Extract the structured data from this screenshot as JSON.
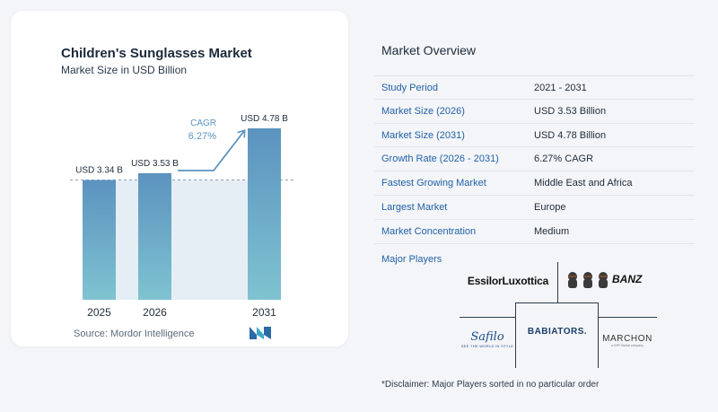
{
  "chart_card": {
    "title": "Children's Sunglasses Market",
    "subtitle": "Market Size in USD Billion",
    "source": "Source:  Mordor Intelligence"
  },
  "chart_data": {
    "type": "bar",
    "title": "Children's Sunglasses Market",
    "subtitle": "Market Size in USD Billion",
    "categories": [
      "2025",
      "2026",
      "2031"
    ],
    "values": [
      3.34,
      3.53,
      4.78
    ],
    "data_labels": [
      "USD 3.34 B",
      "USD 3.53 B",
      "USD 4.78 B"
    ],
    "annotation": {
      "label": "CAGR",
      "value": "6.27%"
    },
    "baseline_reference": 3.34,
    "ylim": [
      0,
      4.78
    ],
    "grid": false,
    "bar_color_top": "#5b93bf",
    "bar_color_bottom": "#7fc3d1",
    "shade_color": "#e6eef5",
    "arrow_color": "#5b93bf"
  },
  "overview": {
    "title": "Market Overview",
    "rows": [
      {
        "label": "Study Period",
        "value": "2021 - 2031"
      },
      {
        "label": "Market Size (2026)",
        "value": "USD 3.53 Billion"
      },
      {
        "label": "Market Size (2031)",
        "value": "USD 4.78 Billion"
      },
      {
        "label": "Growth Rate (2026 - 2031)",
        "value": "6.27% CAGR"
      },
      {
        "label": "Fastest Growing Market",
        "value": "Middle East and Africa"
      },
      {
        "label": "Largest Market",
        "value": "Europe"
      },
      {
        "label": "Market Concentration",
        "value": "Medium"
      }
    ],
    "major_players_title": "Major Players",
    "players": {
      "essilor": "EssilorLuxottica",
      "banz": "BANZ",
      "safilo": "Safilo",
      "safilo_tagline": "SEE THE WORLD IN STYLE",
      "babiators": "BABIATORS.",
      "marchon": "MARCHON",
      "marchon_tagline": "a VSP Global company"
    },
    "disclaimer": "*Disclaimer: Major Players sorted in no particular order"
  }
}
